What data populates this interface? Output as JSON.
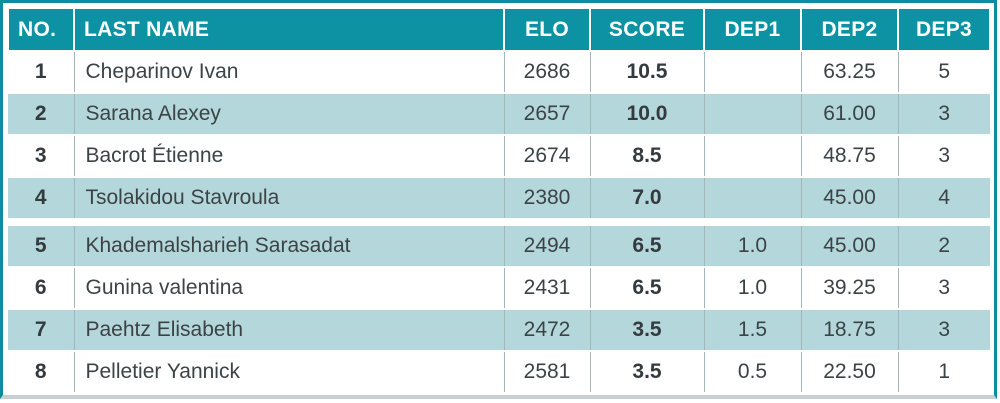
{
  "colors": {
    "header_bg": "#0d92a3",
    "row_shaded": "#b3d7da",
    "border_teal": "#0c8d9d",
    "grid_line": "#a3b6b9",
    "text": "#3c4347",
    "bottom_edge": "#c9d0d1"
  },
  "table": {
    "columns": [
      {
        "key": "no",
        "label": "NO."
      },
      {
        "key": "name",
        "label": "LAST NAME"
      },
      {
        "key": "elo",
        "label": "ELO"
      },
      {
        "key": "score",
        "label": "SCORE"
      },
      {
        "key": "dep1",
        "label": "DEP1"
      },
      {
        "key": "dep2",
        "label": "DEP2"
      },
      {
        "key": "dep3",
        "label": "DEP3"
      }
    ],
    "sections": [
      {
        "rows": [
          {
            "no": "1",
            "name": "Cheparinov Ivan",
            "elo": "2686",
            "score": "10.5",
            "dep1": "",
            "dep2": "63.25",
            "dep3": "5"
          },
          {
            "no": "2",
            "name": "Sarana Alexey",
            "elo": "2657",
            "score": "10.0",
            "dep1": "",
            "dep2": "61.00",
            "dep3": "3"
          },
          {
            "no": "3",
            "name": "Bacrot Étienne",
            "elo": "2674",
            "score": "8.5",
            "dep1": "",
            "dep2": "48.75",
            "dep3": "3"
          },
          {
            "no": "4",
            "name": "Tsolakidou Stavroula",
            "elo": "2380",
            "score": "7.0",
            "dep1": "",
            "dep2": "45.00",
            "dep3": "4"
          }
        ]
      },
      {
        "rows": [
          {
            "no": "5",
            "name": "Khademalsharieh Sarasadat",
            "elo": "2494",
            "score": "6.5",
            "dep1": "1.0",
            "dep2": "45.00",
            "dep3": "2"
          },
          {
            "no": "6",
            "name": "Gunina valentina",
            "elo": "2431",
            "score": "6.5",
            "dep1": "1.0",
            "dep2": "39.25",
            "dep3": "3"
          },
          {
            "no": "7",
            "name": "Paehtz Elisabeth",
            "elo": "2472",
            "score": "3.5",
            "dep1": "1.5",
            "dep2": "18.75",
            "dep3": "3"
          },
          {
            "no": "8",
            "name": "Pelletier Yannick",
            "elo": "2581",
            "score": "3.5",
            "dep1": "0.5",
            "dep2": "22.50",
            "dep3": "1"
          }
        ]
      }
    ]
  }
}
